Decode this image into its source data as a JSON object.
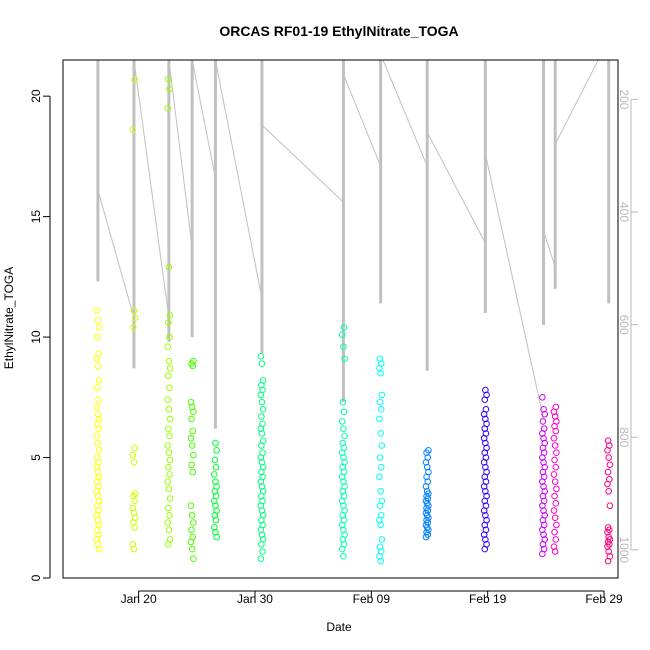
{
  "chart_data": {
    "type": "scatter",
    "title": "ORCAS RF01-19 EthylNitrate_TOGA",
    "xlabel": "Date",
    "ylabel": "EthylNitrate_TOGA",
    "x_unit": "days after Jan 20",
    "xlim": [
      -6.5,
      41.2
    ],
    "ylim": [
      0,
      21.5
    ],
    "yticks": [
      0,
      5,
      10,
      15,
      20
    ],
    "xticks": [
      {
        "value": 0,
        "label": "Jan 20"
      },
      {
        "value": 10,
        "label": "Jan 30"
      },
      {
        "value": 20,
        "label": "Feb 09"
      },
      {
        "value": 30,
        "label": "Feb 19"
      },
      {
        "value": 40,
        "label": "Feb 29"
      }
    ],
    "y2lim": [
      1050,
      130
    ],
    "y2ticks": [
      200,
      400,
      600,
      800,
      1000
    ],
    "point_style": "open circle",
    "series": [
      {
        "x": -3.5,
        "color": "#ffff00",
        "values": [
          11.1,
          10.7,
          10.4,
          10.0,
          9.3,
          9.1,
          8.8,
          8.2,
          7.9,
          7.4,
          7.1,
          6.8,
          6.6,
          6.4,
          6.2,
          5.9,
          5.6,
          5.3,
          5.0,
          4.8,
          4.6,
          4.4,
          4.2,
          4.0,
          3.8,
          3.6,
          3.4,
          3.2,
          3.0,
          2.8,
          2.6,
          2.4,
          2.2,
          2.0,
          1.8,
          1.6,
          1.4,
          1.2
        ]
      },
      {
        "x": -0.4,
        "color": "#ccff00",
        "values": [
          20.7,
          18.6,
          11.1,
          10.8,
          10.4,
          5.4,
          5.1,
          4.8,
          3.5,
          3.4,
          3.2,
          2.9,
          2.7,
          2.5,
          2.3,
          2.1,
          1.4,
          1.2
        ]
      },
      {
        "x": 2.6,
        "color": "#99ff00",
        "values": [
          20.7,
          20.3,
          19.5,
          12.9,
          10.9,
          10.6,
          10.0,
          9.6,
          9.0,
          8.7,
          8.4,
          7.9,
          7.4,
          7.0,
          6.6,
          6.2,
          5.9,
          5.5,
          5.2,
          4.9,
          4.6,
          4.3,
          4.0,
          3.7,
          3.3,
          2.9,
          2.6,
          2.3,
          2.0,
          1.6,
          1.4
        ]
      },
      {
        "x": 4.6,
        "color": "#4cff00",
        "values": [
          9.0,
          8.9,
          8.8,
          7.3,
          7.1,
          6.9,
          6.6,
          6.1,
          5.8,
          5.5,
          5.1,
          4.7,
          4.4,
          3.0,
          2.6,
          2.3,
          2.0,
          1.7,
          1.5,
          1.2,
          0.8
        ]
      },
      {
        "x": 6.6,
        "color": "#00ff33",
        "values": [
          5.6,
          5.3,
          4.9,
          4.6,
          4.3,
          4.0,
          3.8,
          3.6,
          3.4,
          3.2,
          3.0,
          2.8,
          2.6,
          2.4,
          2.1,
          1.9,
          1.7
        ]
      },
      {
        "x": 10.6,
        "color": "#00ff80",
        "values": [
          9.2,
          8.9,
          8.2,
          8.0,
          7.8,
          7.6,
          7.3,
          7.0,
          6.7,
          6.4,
          6.2,
          6.0,
          5.7,
          5.5,
          5.2,
          5.0,
          4.8,
          4.6,
          4.4,
          4.2,
          4.0,
          3.8,
          3.6,
          3.4,
          3.2,
          3.0,
          2.8,
          2.6,
          2.4,
          2.2,
          2.0,
          1.8,
          1.6,
          1.4,
          1.1,
          0.8
        ]
      },
      {
        "x": 17.6,
        "color": "#00ffb2",
        "values": [
          10.4,
          10.1,
          9.6,
          9.1,
          7.3,
          6.9,
          6.5,
          6.2,
          5.9,
          5.6,
          5.4,
          5.2,
          5.0,
          4.8,
          4.6,
          4.4,
          4.2,
          4.0,
          3.8,
          3.6,
          3.4,
          3.2,
          3.0,
          2.8,
          2.6,
          2.4,
          2.2,
          2.0,
          1.8,
          1.6,
          1.4,
          1.2,
          0.9
        ]
      },
      {
        "x": 20.8,
        "color": "#00ffff",
        "values": [
          9.1,
          8.9,
          8.7,
          8.5,
          7.6,
          7.3,
          7.0,
          6.6,
          6.0,
          5.5,
          5.0,
          4.6,
          4.2,
          3.6,
          3.2,
          3.0,
          2.6,
          2.4,
          2.2,
          1.6,
          1.3,
          1.1,
          0.9,
          0.7
        ]
      },
      {
        "x": 24.8,
        "color": "#0080ff",
        "values": [
          5.3,
          5.2,
          5.0,
          4.8,
          4.6,
          4.4,
          4.2,
          4.0,
          3.8,
          3.6,
          3.5,
          3.4,
          3.3,
          3.2,
          3.1,
          3.0,
          2.9,
          2.8,
          2.7,
          2.6,
          2.5,
          2.4,
          2.3,
          2.2,
          2.1,
          2.0,
          1.9,
          1.8,
          1.7
        ]
      },
      {
        "x": 29.8,
        "color": "#3300ff",
        "values": [
          7.8,
          7.6,
          7.4,
          7.0,
          6.8,
          6.6,
          6.4,
          6.2,
          6.0,
          5.8,
          5.6,
          5.4,
          5.2,
          5.0,
          4.8,
          4.6,
          4.4,
          4.2,
          4.0,
          3.8,
          3.6,
          3.4,
          3.2,
          3.0,
          2.8,
          2.6,
          2.4,
          2.2,
          2.0,
          1.8,
          1.6,
          1.4,
          1.2
        ]
      },
      {
        "x": 34.8,
        "color": "#cc00ff",
        "values": [
          7.5,
          7.0,
          6.8,
          6.5,
          6.2,
          6.0,
          5.8,
          5.6,
          5.4,
          5.2,
          5.0,
          4.8,
          4.6,
          4.4,
          4.2,
          4.0,
          3.8,
          3.6,
          3.4,
          3.2,
          3.0,
          2.8,
          2.6,
          2.4,
          2.2,
          2.0,
          1.8,
          1.6,
          1.4,
          1.2,
          1.0
        ]
      },
      {
        "x": 35.8,
        "color": "#ff00cc",
        "values": [
          7.1,
          6.9,
          6.7,
          6.5,
          6.3,
          6.1,
          5.8,
          5.5,
          5.2,
          4.9,
          4.6,
          4.3,
          4.0,
          3.7,
          3.4,
          3.1,
          2.8,
          2.5,
          2.2,
          1.9,
          1.6,
          1.3,
          1.1
        ]
      },
      {
        "x": 40.4,
        "color": "#ff0080",
        "values": [
          5.7,
          5.5,
          5.3,
          5.0,
          4.7,
          4.4,
          4.1,
          3.9,
          3.6,
          3.0,
          2.1,
          2.0,
          1.9,
          1.7,
          1.6,
          1.5,
          1.4,
          1.3,
          1.1,
          0.9,
          0.7
        ]
      }
    ],
    "background_profiles": {
      "color": "#c0c0c0",
      "spikes": [
        {
          "x": -3.5,
          "y_bottom": 12.3
        },
        {
          "x": -0.4,
          "y_bottom": 8.7
        },
        {
          "x": 2.6,
          "y_bottom": 9.8
        },
        {
          "x": 4.6,
          "y_bottom": 10.0
        },
        {
          "x": 6.6,
          "y_bottom": 6.2
        },
        {
          "x": 10.6,
          "y_bottom": 9.3
        },
        {
          "x": 17.6,
          "y_bottom": 7.3
        },
        {
          "x": 20.8,
          "y_bottom": 11.4
        },
        {
          "x": 24.8,
          "y_bottom": 8.6
        },
        {
          "x": 29.8,
          "y_bottom": 11.0
        },
        {
          "x": 34.8,
          "y_bottom": 10.5
        },
        {
          "x": 35.8,
          "y_bottom": 12.0
        },
        {
          "x": 40.4,
          "y_bottom": 11.4
        }
      ],
      "connectors": [
        [
          [
            -3.5,
            16.1
          ],
          [
            -0.4,
            10.8
          ]
        ],
        [
          [
            -0.4,
            21.5
          ],
          [
            2.6,
            10.8
          ]
        ],
        [
          [
            2.6,
            21.5
          ],
          [
            4.6,
            13.7
          ]
        ],
        [
          [
            4.6,
            21.5
          ],
          [
            6.6,
            16.6
          ]
        ],
        [
          [
            6.6,
            21.5
          ],
          [
            10.6,
            11.6
          ]
        ],
        [
          [
            10.6,
            18.8
          ],
          [
            17.6,
            15.6
          ]
        ],
        [
          [
            17.6,
            20.9
          ],
          [
            20.8,
            17.1
          ]
        ],
        [
          [
            21.0,
            21.5
          ],
          [
            24.8,
            17.1
          ]
        ],
        [
          [
            24.8,
            18.5
          ],
          [
            29.8,
            13.9
          ]
        ],
        [
          [
            29.8,
            17.6
          ],
          [
            34.8,
            6.6
          ]
        ],
        [
          [
            34.8,
            14.4
          ],
          [
            35.8,
            12.9
          ]
        ],
        [
          [
            35.8,
            18.0
          ],
          [
            39.5,
            21.5
          ]
        ]
      ]
    }
  }
}
